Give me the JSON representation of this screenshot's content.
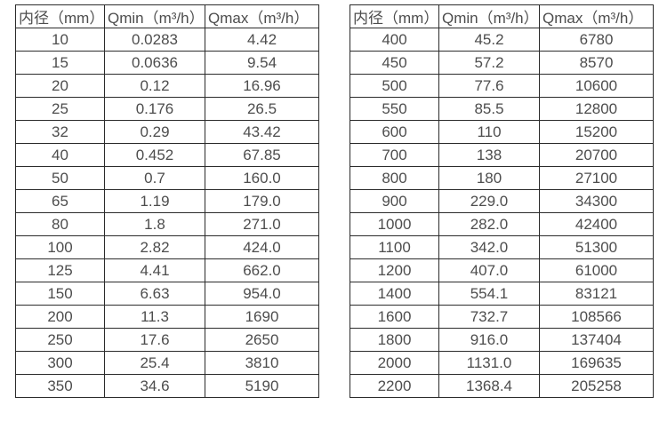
{
  "page": {
    "background_color": "#ffffff",
    "border_color": "#2b2b2b",
    "text_color": "#4d4d4d"
  },
  "tables": [
    {
      "name": "small-diameter-flow-table",
      "headers": [
        "内径（mm）",
        "Qmin（m³/h）",
        "Qmax（m³/h）"
      ],
      "columns": [
        "diameter_mm",
        "qmin_m3_per_h",
        "qmax_m3_per_h"
      ],
      "rows": [
        [
          "10",
          "0.0283",
          "4.42"
        ],
        [
          "15",
          "0.0636",
          "9.54"
        ],
        [
          "20",
          "0.12",
          "16.96"
        ],
        [
          "25",
          "0.176",
          "26.5"
        ],
        [
          "32",
          "0.29",
          "43.42"
        ],
        [
          "40",
          "0.452",
          "67.85"
        ],
        [
          "50",
          "0.7",
          "160.0"
        ],
        [
          "65",
          "1.19",
          "179.0"
        ],
        [
          "80",
          "1.8",
          "271.0"
        ],
        [
          "100",
          "2.82",
          "424.0"
        ],
        [
          "125",
          "4.41",
          "662.0"
        ],
        [
          "150",
          "6.63",
          "954.0"
        ],
        [
          "200",
          "11.3",
          "1690"
        ],
        [
          "250",
          "17.6",
          "2650"
        ],
        [
          "300",
          "25.4",
          "3810"
        ],
        [
          "350",
          "34.6",
          "5190"
        ]
      ]
    },
    {
      "name": "large-diameter-flow-table",
      "headers": [
        "内径（mm）",
        "Qmin（m³/h）",
        "Qmax（m³/h）"
      ],
      "columns": [
        "diameter_mm",
        "qmin_m3_per_h",
        "qmax_m3_per_h"
      ],
      "rows": [
        [
          "400",
          "45.2",
          "6780"
        ],
        [
          "450",
          "57.2",
          "8570"
        ],
        [
          "500",
          "77.6",
          "10600"
        ],
        [
          "550",
          "85.5",
          "12800"
        ],
        [
          "600",
          "110",
          "15200"
        ],
        [
          "700",
          "138",
          "20700"
        ],
        [
          "800",
          "180",
          "27100"
        ],
        [
          "900",
          "229.0",
          "34300"
        ],
        [
          "1000",
          "282.0",
          "42400"
        ],
        [
          "1100",
          "342.0",
          "51300"
        ],
        [
          "1200",
          "407.0",
          "61000"
        ],
        [
          "1400",
          "554.1",
          "83121"
        ],
        [
          "1600",
          "732.7",
          "108566"
        ],
        [
          "1800",
          "916.0",
          "137404"
        ],
        [
          "2000",
          "1131.0",
          "169635"
        ],
        [
          "2200",
          "1368.4",
          "205258"
        ]
      ]
    }
  ]
}
